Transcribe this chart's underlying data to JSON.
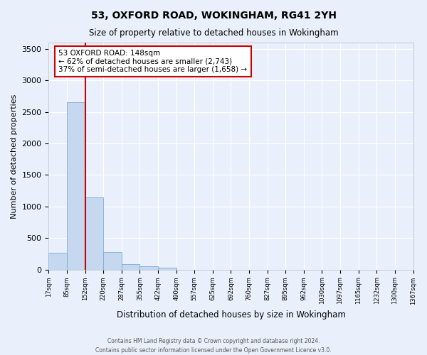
{
  "title1": "53, OXFORD ROAD, WOKINGHAM, RG41 2YH",
  "title2": "Size of property relative to detached houses in Wokingham",
  "xlabel": "Distribution of detached houses by size in Wokingham",
  "ylabel": "Number of detached properties",
  "bar_color": "#c5d8f0",
  "bar_edge_color": "#7aadd4",
  "bin_labels": [
    "17sqm",
    "85sqm",
    "152sqm",
    "220sqm",
    "287sqm",
    "355sqm",
    "422sqm",
    "490sqm",
    "557sqm",
    "625sqm",
    "692sqm",
    "760sqm",
    "827sqm",
    "895sqm",
    "962sqm",
    "1030sqm",
    "1097sqm",
    "1165sqm",
    "1232sqm",
    "1300sqm",
    "1367sqm"
  ],
  "bar_heights": [
    270,
    2650,
    1150,
    280,
    90,
    50,
    30,
    0,
    0,
    0,
    0,
    0,
    0,
    0,
    0,
    0,
    0,
    0,
    0,
    0
  ],
  "red_line_bin_index": 2,
  "ylim": [
    0,
    3600
  ],
  "yticks": [
    0,
    500,
    1000,
    1500,
    2000,
    2500,
    3000,
    3500
  ],
  "annotation_text": "53 OXFORD ROAD: 148sqm\n← 62% of detached houses are smaller (2,743)\n37% of semi-detached houses are larger (1,658) →",
  "annotation_box_color": "#ffffff",
  "annotation_box_edge_color": "#cc0000",
  "red_line_color": "#cc0000",
  "background_color": "#eaf0fb",
  "grid_color": "#ffffff",
  "footer": "Contains HM Land Registry data © Crown copyright and database right 2024.\nContains public sector information licensed under the Open Government Licence v3.0."
}
